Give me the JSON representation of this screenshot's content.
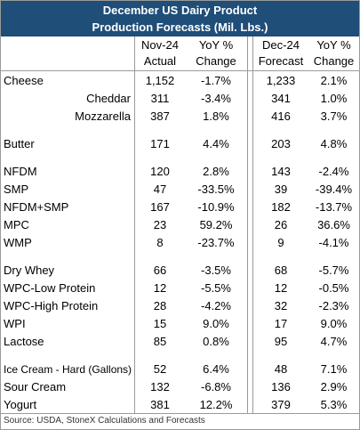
{
  "header": {
    "title": [
      "December US Dairy Product",
      "Production Forecasts (Mil. Lbs.)"
    ]
  },
  "table": {
    "columns": [
      [
        "Nov-24",
        "Actual"
      ],
      [
        "YoY %",
        "Change"
      ],
      [
        "Dec-24",
        "Forecast"
      ],
      [
        "YoY %",
        "Change"
      ]
    ],
    "groups": [
      [
        {
          "cells": [
            "Cheese",
            "1,152",
            "-1.7%",
            "1,233",
            "2.1%"
          ]
        },
        {
          "cells": [
            "Cheddar",
            "311",
            "-3.4%",
            "341",
            "1.0%"
          ],
          "indent": true
        },
        {
          "cells": [
            "Mozzarella",
            "387",
            "1.8%",
            "416",
            "3.7%"
          ],
          "indent": true
        }
      ],
      [
        {
          "cells": [
            "Butter",
            "171",
            "4.4%",
            "203",
            "4.8%"
          ]
        }
      ],
      [
        {
          "cells": [
            "NFDM",
            "120",
            "2.8%",
            "143",
            "-2.4%"
          ]
        },
        {
          "cells": [
            "SMP",
            "47",
            "-33.5%",
            "39",
            "-39.4%"
          ]
        },
        {
          "cells": [
            "NFDM+SMP",
            "167",
            "-10.9%",
            "182",
            "-13.7%"
          ]
        },
        {
          "cells": [
            "MPC",
            "23",
            "59.2%",
            "26",
            "36.6%"
          ]
        },
        {
          "cells": [
            "WMP",
            "8",
            "-23.7%",
            "9",
            "-4.1%"
          ]
        }
      ],
      [
        {
          "cells": [
            "Dry Whey",
            "66",
            "-3.5%",
            "68",
            "-5.7%"
          ]
        },
        {
          "cells": [
            "WPC-Low Protein",
            "12",
            "-5.5%",
            "12",
            "-0.5%"
          ]
        },
        {
          "cells": [
            "WPC-High Protein",
            "28",
            "-4.2%",
            "32",
            "-2.3%"
          ]
        },
        {
          "cells": [
            "WPI",
            "15",
            "9.0%",
            "17",
            "9.0%"
          ]
        },
        {
          "cells": [
            "Lactose",
            "85",
            "0.8%",
            "95",
            "4.7%"
          ]
        }
      ],
      [
        {
          "cells": [
            "Ice Cream - Hard (Gallons)",
            "52",
            "6.4%",
            "48",
            "7.1%"
          ]
        },
        {
          "cells": [
            "Sour Cream",
            "132",
            "-6.8%",
            "136",
            "2.9%"
          ]
        },
        {
          "cells": [
            "Yogurt",
            "381",
            "12.2%",
            "379",
            "5.3%"
          ]
        }
      ]
    ]
  },
  "footer": {
    "source": "Source: USDA, StoneX Calculations and Forecasts"
  }
}
